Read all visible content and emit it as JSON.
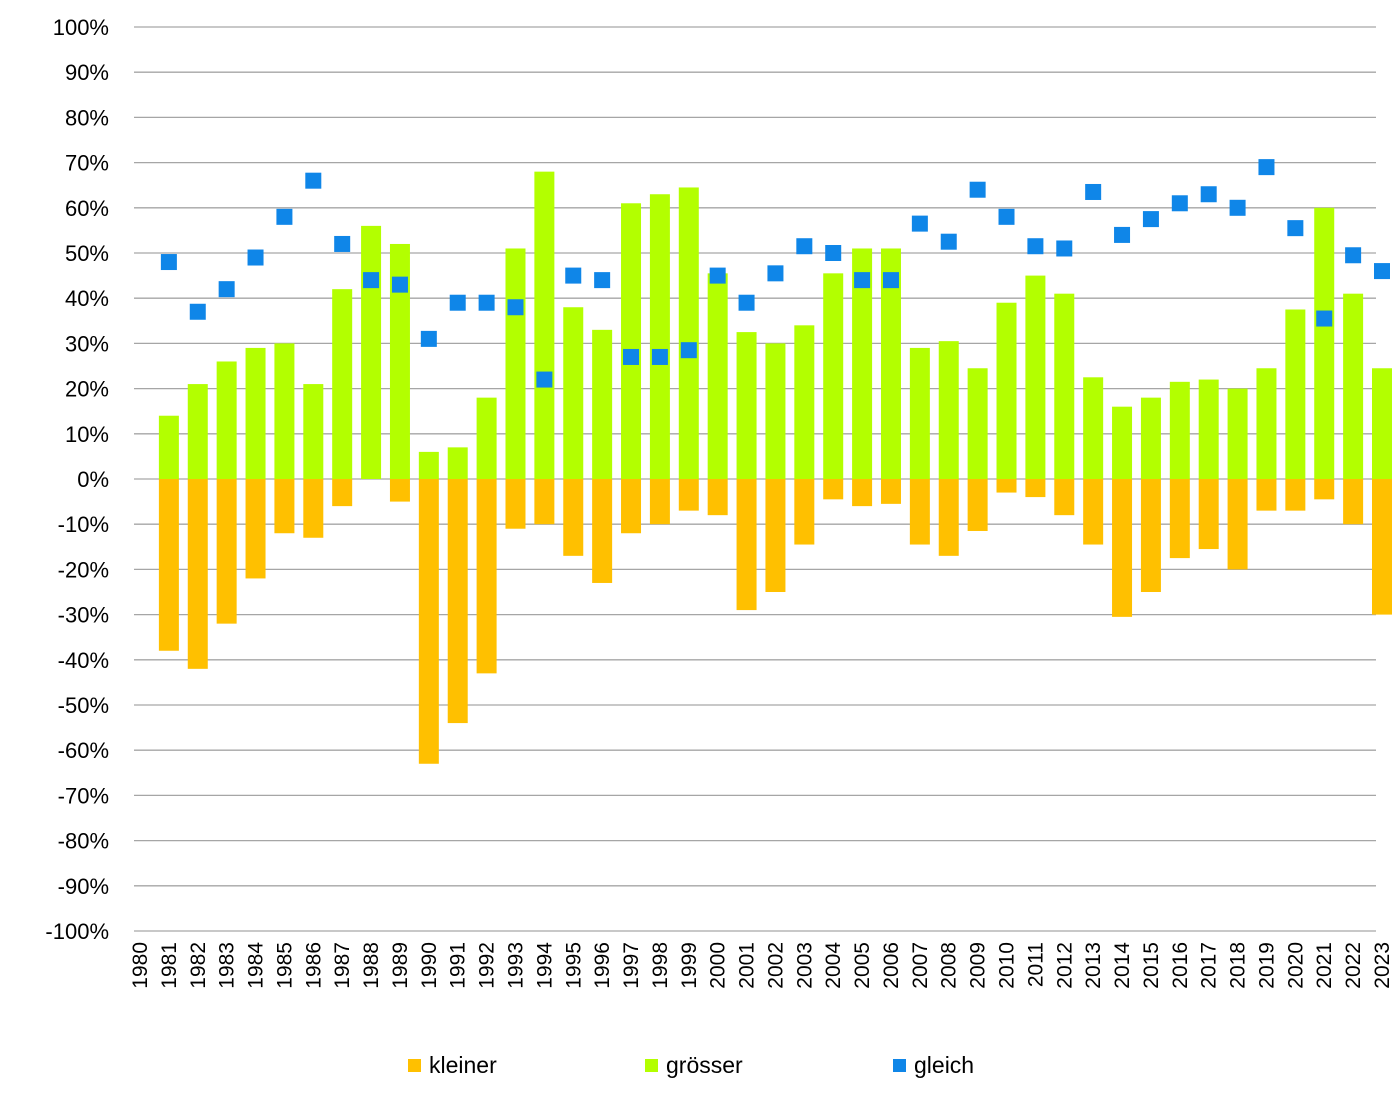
{
  "chart_data": {
    "type": "bar",
    "x": [
      "1980",
      "1981",
      "1982",
      "1983",
      "1984",
      "1985",
      "1986",
      "1987",
      "1988",
      "1989",
      "1990",
      "1991",
      "1992",
      "1993",
      "1994",
      "1995",
      "1996",
      "1997",
      "1998",
      "1999",
      "2000",
      "2001",
      "2002",
      "2003",
      "2004",
      "2005",
      "2006",
      "2007",
      "2008",
      "2009",
      "2010",
      "2011",
      "2012",
      "2013",
      "2014",
      "2015",
      "2016",
      "2017",
      "2018",
      "2019",
      "2020",
      "2021",
      "2022",
      "2023"
    ],
    "yticks": [
      "100%",
      "90%",
      "80%",
      "70%",
      "60%",
      "50%",
      "40%",
      "30%",
      "20%",
      "10%",
      "0%",
      "-10%",
      "-20%",
      "-30%",
      "-40%",
      "-50%",
      "-60%",
      "-70%",
      "-80%",
      "-90%",
      "-100%"
    ],
    "ylim": [
      -100,
      100
    ],
    "grid": true,
    "legend_position": "bottom",
    "series": [
      {
        "name": "kleiner",
        "type": "bar",
        "color": "#FFC000",
        "values": [
          null,
          -38,
          -42,
          -32,
          -22,
          -12,
          -13,
          -6,
          0,
          -5,
          -63,
          -54,
          -43,
          -11,
          -10,
          -17,
          -23,
          -12,
          -10,
          -7,
          -8,
          -29,
          -25,
          -14.5,
          -4.5,
          -6,
          -5.5,
          -14.5,
          -17,
          -11.5,
          -3,
          -4,
          -8,
          -14.5,
          -30.5,
          -25,
          -17.5,
          -15.5,
          -20,
          -7,
          -7,
          -4.5,
          -10,
          -30
        ]
      },
      {
        "name": "grösser",
        "type": "bar",
        "color": "#B3FF00",
        "values": [
          null,
          14,
          21,
          26,
          29,
          30,
          21,
          42,
          56,
          52,
          6,
          7,
          18,
          51,
          68,
          38,
          33,
          61,
          63,
          64.5,
          45.5,
          32.5,
          30,
          34,
          45.5,
          51,
          51,
          29,
          30.5,
          24.5,
          39,
          45,
          41,
          22.5,
          16,
          18,
          21.5,
          22,
          20,
          24.5,
          37.5,
          60,
          41,
          24.5
        ]
      },
      {
        "name": "gleich",
        "type": "scatter",
        "color": "#0F86E8",
        "values": [
          null,
          48,
          37,
          42,
          49,
          58,
          66,
          52,
          44,
          43,
          31,
          39,
          39,
          38,
          22,
          45,
          44,
          27,
          27,
          28.5,
          45,
          39,
          45.5,
          51.5,
          50,
          44,
          44,
          56.5,
          52.5,
          64,
          58,
          51.5,
          51,
          63.5,
          54,
          57.5,
          61,
          63,
          60,
          69,
          55.5,
          35.5,
          49.5,
          46
        ]
      }
    ]
  }
}
